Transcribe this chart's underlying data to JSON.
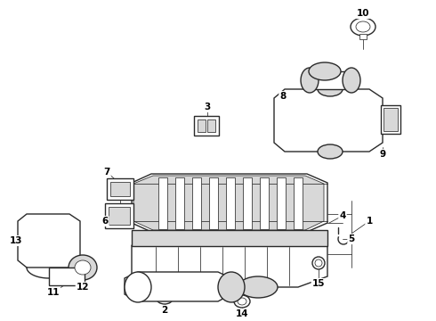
{
  "bg_color": "#ffffff",
  "line_color": "#2a2a2a",
  "label_color": "#000000",
  "lw_main": 1.0,
  "lw_thin": 0.55,
  "lw_thick": 1.4,
  "gray_light": "#d8d8d8",
  "gray_med": "#b0b0b0",
  "gray_dark": "#888888"
}
